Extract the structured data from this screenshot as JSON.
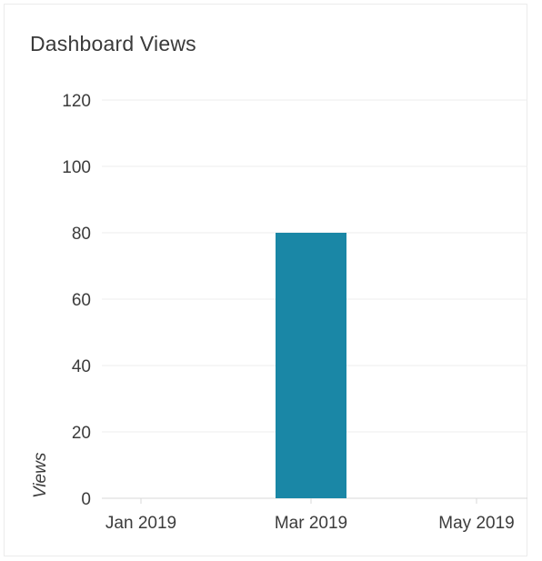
{
  "card": {
    "title": "Dashboard Views"
  },
  "chart_data": {
    "type": "bar",
    "title": "Dashboard Views",
    "xlabel": "",
    "ylabel": "Views",
    "categories": [
      "Jan 2019",
      "Mar 2019",
      "May 2019"
    ],
    "x_ticks": [
      "Jan 2019",
      "Mar 2019",
      "May 2019"
    ],
    "values": [
      0,
      80,
      0
    ],
    "ylim": [
      0,
      120
    ],
    "y_ticks": [
      0,
      20,
      40,
      60,
      80,
      100,
      120
    ],
    "grid": true,
    "legend": "none",
    "bar_color": "#1a87a6",
    "grid_color": "#eeeeee",
    "axis_color": "#d8d8d8"
  }
}
